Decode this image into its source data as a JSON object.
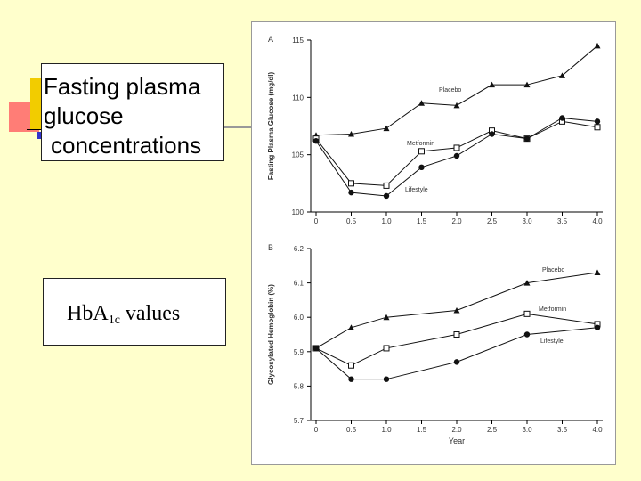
{
  "labels": {
    "fasting_line1": "Fasting plasma",
    "fasting_line2": "glucose",
    "fasting_line3": "concentrations",
    "hba_main": "Hb",
    "hba_a": "A",
    "hba_sub": "1c",
    "hba_rest": " values"
  },
  "colors": {
    "background": "#ffffcc",
    "deco_yellow": "#f2cc00",
    "deco_red": "#ff6666",
    "deco_blue": "#3333cc"
  },
  "chart_data": [
    {
      "type": "line",
      "panel_label": "A",
      "ylabel": "Fasting Plasma Glucose (mg/dl)",
      "xlabel": "",
      "x": [
        0,
        0.5,
        1.0,
        1.5,
        2.0,
        2.5,
        3.0,
        3.5,
        4.0
      ],
      "xticks": [
        "0",
        "0.5",
        "1.0",
        "1.5",
        "2.0",
        "2.5",
        "3.0",
        "3.5",
        "4.0"
      ],
      "ylim": [
        100,
        115
      ],
      "yticks": [
        100,
        105,
        110,
        115
      ],
      "series": [
        {
          "name": "Placebo",
          "marker": "triangle",
          "values": [
            106.7,
            106.8,
            107.3,
            109.5,
            109.3,
            111.1,
            111.1,
            111.9,
            114.5
          ]
        },
        {
          "name": "Metformin",
          "marker": "square",
          "values": [
            106.4,
            102.5,
            102.3,
            105.3,
            105.6,
            107.1,
            106.4,
            107.9,
            107.4
          ]
        },
        {
          "name": "Lifestyle",
          "marker": "circle",
          "values": [
            106.2,
            101.7,
            101.4,
            103.9,
            104.9,
            106.8,
            106.4,
            108.2,
            107.9
          ]
        }
      ]
    },
    {
      "type": "line",
      "panel_label": "B",
      "ylabel": "Glycosylated Hemoglobin (%)",
      "xlabel": "Year",
      "x": [
        0,
        0.5,
        1.0,
        2.0,
        3.0,
        4.0
      ],
      "xticks": [
        "0",
        "0.5",
        "1.0",
        "1.5",
        "2.0",
        "2.5",
        "3.0",
        "3.5",
        "4.0"
      ],
      "ylim": [
        5.7,
        6.2
      ],
      "yticks": [
        5.7,
        5.8,
        5.9,
        6.0,
        6.1,
        6.2
      ],
      "series": [
        {
          "name": "Placebo",
          "marker": "triangle",
          "values": [
            5.91,
            5.97,
            6.0,
            6.02,
            6.1,
            6.13
          ]
        },
        {
          "name": "Metformin",
          "marker": "square",
          "values": [
            5.91,
            5.86,
            5.91,
            5.95,
            6.01,
            5.98
          ]
        },
        {
          "name": "Lifestyle",
          "marker": "circle",
          "values": [
            5.91,
            5.82,
            5.82,
            5.87,
            5.95,
            5.97
          ]
        }
      ]
    }
  ]
}
